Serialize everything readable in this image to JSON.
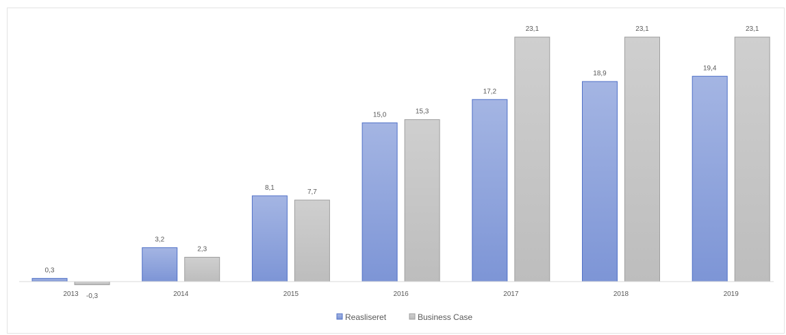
{
  "chart_data": {
    "type": "bar",
    "title": "",
    "xlabel": "",
    "ylabel": "",
    "categories": [
      "2013",
      "2014",
      "2015",
      "2016",
      "2017",
      "2018",
      "2019"
    ],
    "series": [
      {
        "name": "Reasliseret",
        "values": [
          0.3,
          3.2,
          8.1,
          15.0,
          17.2,
          18.9,
          19.4
        ],
        "labels": [
          "0,3",
          "3,2",
          "8,1",
          "15,0",
          "17,2",
          "18,9",
          "19,4"
        ],
        "color": "#8ea4db"
      },
      {
        "name": "Business Case",
        "values": [
          -0.3,
          2.3,
          7.7,
          15.3,
          23.1,
          23.1,
          23.1
        ],
        "labels": [
          "-0,3",
          "2,3",
          "7,7",
          "15,3",
          "23,1",
          "23,1",
          "23,1"
        ],
        "color": "#c6c6c6"
      }
    ],
    "ylim": [
      -0.5,
      25
    ],
    "grid": false,
    "legend_position": "bottom"
  }
}
